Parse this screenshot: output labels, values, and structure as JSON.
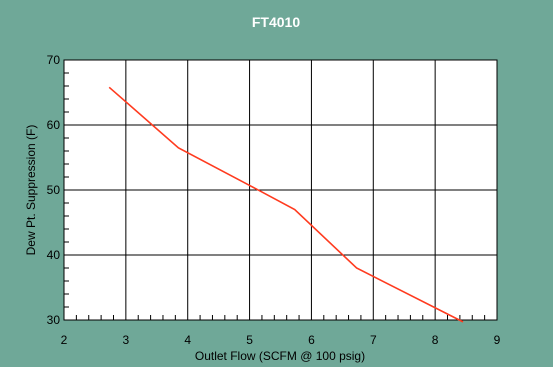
{
  "chart_data": {
    "type": "line",
    "title": "FT4010",
    "xlabel": "Outlet Flow (SCFM @ 100 psig)",
    "ylabel": "Dew Pt. Suppression (F)",
    "xlim": [
      2,
      9
    ],
    "ylim": [
      30,
      70
    ],
    "x_ticks": [
      "2",
      "3",
      "4",
      "5",
      "6",
      "7",
      "8",
      "9"
    ],
    "y_ticks": [
      "30",
      "40",
      "50",
      "60",
      "70"
    ],
    "grid": true,
    "series": [
      {
        "color": "#ff3b1f",
        "x": [
          2.73,
          3.85,
          5.0,
          5.73,
          6.73,
          8.45
        ],
        "y": [
          65.8,
          56.5,
          50.7,
          47.0,
          38.0,
          29.7
        ]
      }
    ]
  },
  "colors": {
    "frame_background": "#6fa898",
    "plot_background": "#ffffff",
    "title_text": "#ffffff",
    "grid_line": "#000000"
  }
}
